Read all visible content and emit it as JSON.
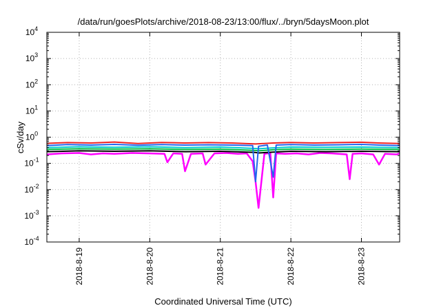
{
  "chart_data": {
    "type": "line",
    "title": "/data/run/goesPlots/archive/2018-08-23/13:00/flux/../bryn/5daysMoon.plot",
    "xlabel": "Coordinated Universal Time (UTC)",
    "ylabel": "cSv/day",
    "yscale": "log",
    "ylim": [
      0.0001,
      10000
    ],
    "grid": true,
    "y_ticks": [
      {
        "base": "10",
        "exp": "-4",
        "value": 0.0001
      },
      {
        "base": "10",
        "exp": "-3",
        "value": 0.001
      },
      {
        "base": "10",
        "exp": "-2",
        "value": 0.01
      },
      {
        "base": "10",
        "exp": "-1",
        "value": 0.1
      },
      {
        "base": "10",
        "exp": "0",
        "value": 1
      },
      {
        "base": "10",
        "exp": "1",
        "value": 10
      },
      {
        "base": "10",
        "exp": "2",
        "value": 100
      },
      {
        "base": "10",
        "exp": "3",
        "value": 1000
      },
      {
        "base": "10",
        "exp": "4",
        "value": 10000
      }
    ],
    "x_ticks": [
      "2018-8-19",
      "2018-8-20",
      "2018-8-21",
      "2018-8-22",
      "2018-8-23"
    ],
    "xlim": [
      "2018-08-18 13:00",
      "2018-08-23 13:00"
    ],
    "series": [
      {
        "color": "#ff00ff",
        "x": [
          "2018-08-18 13:00",
          "2018-08-18 18:00",
          "2018-08-19 00:00",
          "2018-08-19 04:00",
          "2018-08-19 08:00",
          "2018-08-19 12:00",
          "2018-08-19 18:00",
          "2018-08-20 00:00",
          "2018-08-20 05:00",
          "2018-08-20 06:00",
          "2018-08-20 08:00",
          "2018-08-20 11:00",
          "2018-08-20 12:00",
          "2018-08-20 14:00",
          "2018-08-20 18:00",
          "2018-08-20 19:00",
          "2018-08-20 22:00",
          "2018-08-21 02:00",
          "2018-08-21 06:00",
          "2018-08-21 09:00",
          "2018-08-21 11:00",
          "2018-08-21 12:00",
          "2018-08-21 13:00",
          "2018-08-21 15:00",
          "2018-08-21 17:00",
          "2018-08-21 18:00",
          "2018-08-21 19:00",
          "2018-08-21 22:00",
          "2018-08-22 02:00",
          "2018-08-22 06:00",
          "2018-08-22 10:00",
          "2018-08-22 14:00",
          "2018-08-22 19:00",
          "2018-08-22 20:00",
          "2018-08-22 21:00",
          "2018-08-23 00:00",
          "2018-08-23 04:00",
          "2018-08-23 06:00",
          "2018-08-23 08:00",
          "2018-08-23 12:00",
          "2018-08-23 13:00"
        ],
        "values": [
          0.22,
          0.24,
          0.25,
          0.22,
          0.24,
          0.23,
          0.25,
          0.24,
          0.23,
          0.11,
          0.24,
          0.23,
          0.05,
          0.23,
          0.24,
          0.09,
          0.24,
          0.25,
          0.23,
          0.24,
          0.12,
          0.02,
          0.002,
          0.23,
          0.25,
          0.005,
          0.24,
          0.23,
          0.24,
          0.22,
          0.25,
          0.24,
          0.22,
          0.025,
          0.23,
          0.24,
          0.22,
          0.09,
          0.23,
          0.22,
          0.24
        ]
      },
      {
        "color": "#000000",
        "x": [
          "2018-08-18 13:00",
          "2018-08-19 00:00",
          "2018-08-19 12:00",
          "2018-08-20 00:00",
          "2018-08-20 12:00",
          "2018-08-21 00:00",
          "2018-08-21 12:00",
          "2018-08-21 13:00",
          "2018-08-21 18:00",
          "2018-08-22 00:00",
          "2018-08-22 12:00",
          "2018-08-23 00:00",
          "2018-08-23 13:00"
        ],
        "values": [
          0.28,
          0.3,
          0.29,
          0.3,
          0.28,
          0.29,
          0.26,
          0.25,
          0.27,
          0.29,
          0.28,
          0.29,
          0.28
        ]
      },
      {
        "color": "#00bb44",
        "x": [
          "2018-08-18 13:00",
          "2018-08-19 00:00",
          "2018-08-19 12:00",
          "2018-08-20 00:00",
          "2018-08-20 12:00",
          "2018-08-21 00:00",
          "2018-08-21 12:00",
          "2018-08-21 13:00",
          "2018-08-21 18:00",
          "2018-08-22 00:00",
          "2018-08-22 12:00",
          "2018-08-23 00:00",
          "2018-08-23 13:00"
        ],
        "values": [
          0.34,
          0.36,
          0.35,
          0.36,
          0.34,
          0.35,
          0.31,
          0.3,
          0.33,
          0.35,
          0.34,
          0.35,
          0.34
        ]
      },
      {
        "color": "#00cccc",
        "x": [
          "2018-08-18 13:00",
          "2018-08-19 00:00",
          "2018-08-19 12:00",
          "2018-08-20 00:00",
          "2018-08-20 12:00",
          "2018-08-21 00:00",
          "2018-08-21 12:00",
          "2018-08-21 13:00",
          "2018-08-21 18:00",
          "2018-08-22 00:00",
          "2018-08-22 12:00",
          "2018-08-23 00:00",
          "2018-08-23 13:00"
        ],
        "values": [
          0.4,
          0.43,
          0.41,
          0.43,
          0.4,
          0.42,
          0.37,
          0.36,
          0.39,
          0.42,
          0.41,
          0.42,
          0.4
        ]
      },
      {
        "color": "#2266ee",
        "x": [
          "2018-08-18 13:00",
          "2018-08-18 20:00",
          "2018-08-19 04:00",
          "2018-08-19 12:00",
          "2018-08-19 20:00",
          "2018-08-20 04:00",
          "2018-08-20 12:00",
          "2018-08-20 20:00",
          "2018-08-21 04:00",
          "2018-08-21 11:00",
          "2018-08-21 12:00",
          "2018-08-21 13:00",
          "2018-08-21 16:00",
          "2018-08-21 18:00",
          "2018-08-21 19:00",
          "2018-08-22 00:00",
          "2018-08-22 08:00",
          "2018-08-22 16:00",
          "2018-08-23 00:00",
          "2018-08-23 06:00",
          "2018-08-23 13:00"
        ],
        "values": [
          0.48,
          0.52,
          0.5,
          0.53,
          0.49,
          0.52,
          0.5,
          0.51,
          0.5,
          0.48,
          0.02,
          0.45,
          0.5,
          0.03,
          0.5,
          0.52,
          0.5,
          0.51,
          0.53,
          0.5,
          0.48
        ]
      },
      {
        "color": "#ee2222",
        "x": [
          "2018-08-18 13:00",
          "2018-08-18 20:00",
          "2018-08-19 04:00",
          "2018-08-19 12:00",
          "2018-08-19 20:00",
          "2018-08-20 04:00",
          "2018-08-20 12:00",
          "2018-08-20 20:00",
          "2018-08-21 04:00",
          "2018-08-21 12:00",
          "2018-08-21 18:00",
          "2018-08-22 00:00",
          "2018-08-22 08:00",
          "2018-08-22 16:00",
          "2018-08-23 00:00",
          "2018-08-23 06:00",
          "2018-08-23 13:00"
        ],
        "values": [
          0.58,
          0.62,
          0.6,
          0.65,
          0.57,
          0.63,
          0.6,
          0.62,
          0.6,
          0.55,
          0.6,
          0.63,
          0.6,
          0.62,
          0.64,
          0.6,
          0.57
        ]
      }
    ]
  }
}
